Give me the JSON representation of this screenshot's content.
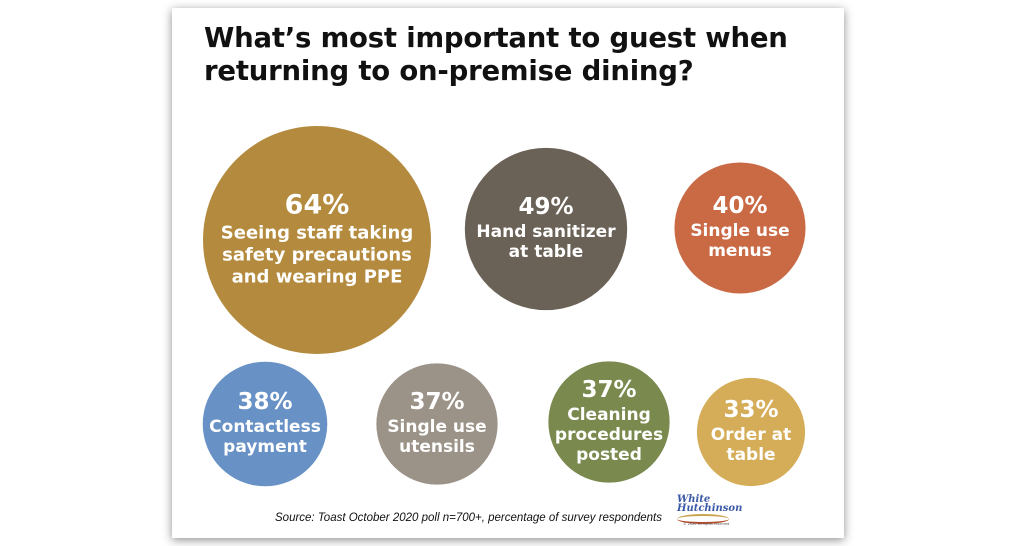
{
  "title": "What’s most important to guest when returning to on-premise dining?",
  "source": "Source: Toast October 2020 poll n=700+, percentage of survey respondents",
  "logo": {
    "line1": "White",
    "line2": "Hutchinson",
    "note": "© 2020 all rights reserved"
  },
  "chart_data": {
    "type": "bubble",
    "title": "What’s most important to guest when returning to on-premise dining?",
    "unit": "percentage of survey respondents",
    "items": [
      {
        "value": 64,
        "value_label": "64%",
        "label": [
          "Seeing staff taking",
          "safety precautions",
          "and wearing PPE"
        ],
        "color": "#b48b3e"
      },
      {
        "value": 49,
        "value_label": "49%",
        "label": [
          "Hand sanitizer",
          "at table"
        ],
        "color": "#6b6257"
      },
      {
        "value": 40,
        "value_label": "40%",
        "label": [
          "Single use",
          "menus"
        ],
        "color": "#c96a45"
      },
      {
        "value": 38,
        "value_label": "38%",
        "label": [
          "Contactless",
          "payment"
        ],
        "color": "#6891c6"
      },
      {
        "value": 37,
        "value_label": "37%",
        "label": [
          "Single use",
          "utensils"
        ],
        "color": "#9b9387"
      },
      {
        "value": 37,
        "value_label": "37%",
        "label": [
          "Cleaning",
          "procedures",
          "posted"
        ],
        "color": "#7a8a4e"
      },
      {
        "value": 33,
        "value_label": "33%",
        "label": [
          "Order at",
          "table"
        ],
        "color": "#d5ad58"
      }
    ]
  }
}
